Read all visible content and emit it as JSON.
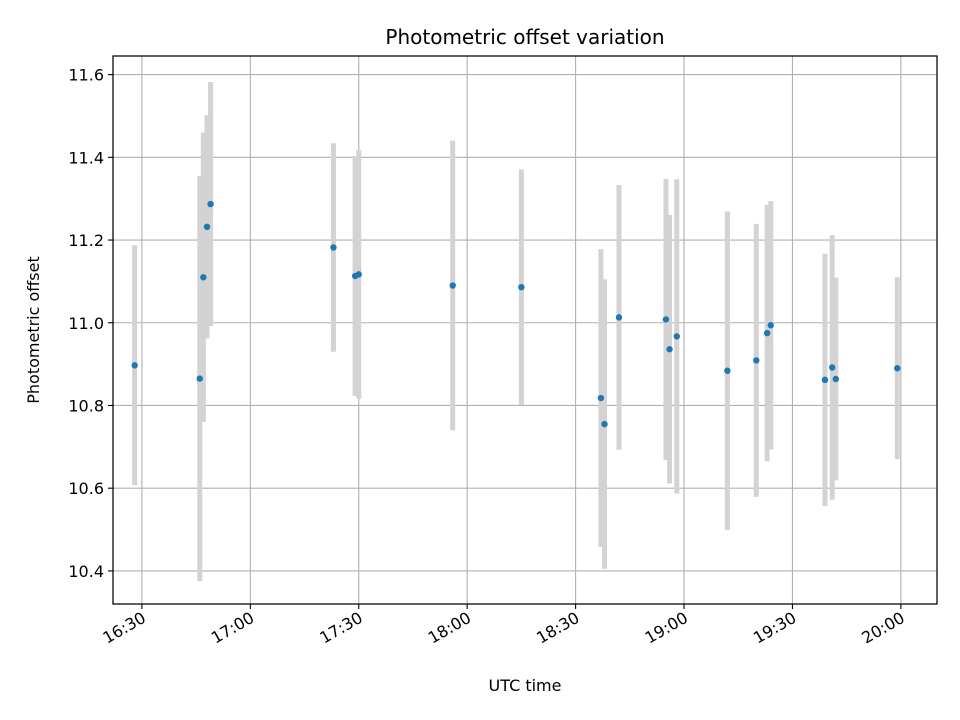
{
  "chart_data": {
    "type": "scatter",
    "title": "Photometric offset variation",
    "xlabel": "UTC time",
    "ylabel": "Photometric offset",
    "xlim": [
      "16:22",
      "20:10"
    ],
    "ylim": [
      10.32,
      11.645
    ],
    "x_ticks": [
      "16:30",
      "17:00",
      "17:30",
      "18:00",
      "18:30",
      "19:00",
      "19:30",
      "20:00"
    ],
    "y_ticks": [
      "10.4",
      "10.6",
      "10.8",
      "11.0",
      "11.2",
      "11.4",
      "11.6"
    ],
    "grid": true,
    "errorbar_color": "#d3d3d3",
    "point_color": "#1f77b4",
    "points": [
      {
        "time": "16:28",
        "y": 10.897,
        "yerr": 0.29
      },
      {
        "time": "16:46",
        "y": 10.865,
        "yerr": 0.49
      },
      {
        "time": "16:47",
        "y": 11.11,
        "yerr": 0.35
      },
      {
        "time": "16:48",
        "y": 11.232,
        "yerr": 0.27
      },
      {
        "time": "16:49",
        "y": 11.287,
        "yerr": 0.295
      },
      {
        "time": "17:23",
        "y": 11.182,
        "yerr": 0.252
      },
      {
        "time": "17:29",
        "y": 11.113,
        "yerr": 0.29
      },
      {
        "time": "17:30",
        "y": 11.117,
        "yerr": 0.3
      },
      {
        "time": "17:56",
        "y": 11.09,
        "yerr": 0.35
      },
      {
        "time": "18:15",
        "y": 11.086,
        "yerr": 0.285
      },
      {
        "time": "18:37",
        "y": 10.818,
        "yerr": 0.36
      },
      {
        "time": "18:38",
        "y": 10.755,
        "yerr": 0.35
      },
      {
        "time": "18:42",
        "y": 11.013,
        "yerr": 0.32
      },
      {
        "time": "18:55",
        "y": 11.008,
        "yerr": 0.34
      },
      {
        "time": "18:56",
        "y": 10.936,
        "yerr": 0.325
      },
      {
        "time": "18:58",
        "y": 10.967,
        "yerr": 0.38
      },
      {
        "time": "19:12",
        "y": 10.884,
        "yerr": 0.385
      },
      {
        "time": "19:20",
        "y": 10.909,
        "yerr": 0.33
      },
      {
        "time": "19:23",
        "y": 10.975,
        "yerr": 0.31
      },
      {
        "time": "19:24",
        "y": 10.994,
        "yerr": 0.3
      },
      {
        "time": "19:39",
        "y": 10.862,
        "yerr": 0.305
      },
      {
        "time": "19:41",
        "y": 10.892,
        "yerr": 0.32
      },
      {
        "time": "19:42",
        "y": 10.864,
        "yerr": 0.245
      },
      {
        "time": "19:59",
        "y": 10.89,
        "yerr": 0.22
      }
    ]
  }
}
